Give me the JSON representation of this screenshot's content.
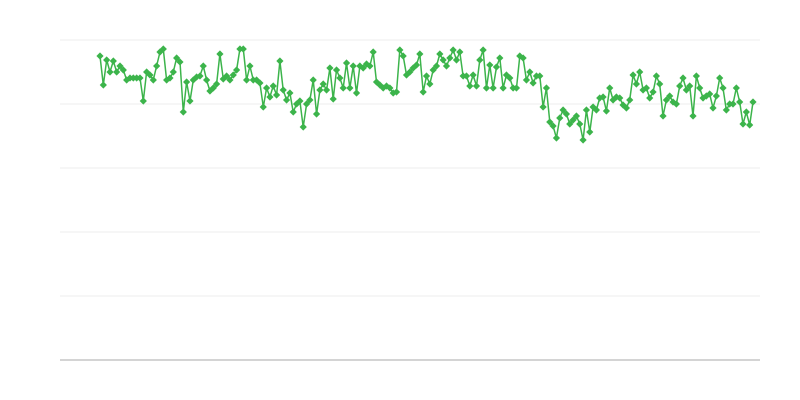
{
  "chart_data": {
    "type": "line",
    "title": "",
    "xlabel": "",
    "ylabel": "",
    "ylim": [
      0,
      320
    ],
    "grid": true,
    "grid_step": 64,
    "marker": "diamond",
    "colors": {
      "series": "#3cb44b",
      "grid": "#eeeeee",
      "axis": "#aaaaaa"
    },
    "series": [
      {
        "values": [
          304,
          275,
          300,
          288,
          299,
          288,
          294,
          290,
          280,
          282,
          282,
          282,
          282,
          259,
          288,
          285,
          280,
          294,
          308,
          311,
          280,
          282,
          288,
          302,
          298,
          248,
          278,
          259,
          280,
          283,
          284,
          294,
          280,
          269,
          272,
          276,
          306,
          281,
          284,
          280,
          285,
          290,
          311,
          311,
          280,
          294,
          280,
          280,
          277,
          253,
          272,
          263,
          274,
          265,
          299,
          270,
          260,
          267,
          248,
          256,
          259,
          233,
          256,
          260,
          280,
          246,
          270,
          276,
          270,
          292,
          261,
          290,
          282,
          272,
          297,
          272,
          294,
          267,
          294,
          292,
          296,
          294,
          308,
          278,
          275,
          272,
          274,
          272,
          267,
          268,
          310,
          304,
          285,
          288,
          292,
          295,
          306,
          268,
          284,
          276,
          290,
          294,
          306,
          300,
          294,
          302,
          310,
          300,
          308,
          284,
          284,
          274,
          285,
          274,
          300,
          310,
          272,
          295,
          272,
          293,
          302,
          272,
          285,
          282,
          272,
          272,
          304,
          302,
          280,
          288,
          277,
          284,
          284,
          253,
          272,
          238,
          234,
          222,
          242,
          250,
          246,
          236,
          240,
          244,
          236,
          220,
          250,
          228,
          253,
          250,
          262,
          263,
          249,
          272,
          260,
          263,
          262,
          255,
          252,
          260,
          285,
          276,
          288,
          270,
          272,
          262,
          268,
          284,
          276,
          244,
          260,
          264,
          258,
          256,
          274,
          282,
          270,
          274,
          244,
          284,
          272,
          262,
          264,
          266,
          252,
          264,
          282,
          272,
          250,
          256,
          256,
          272,
          258,
          236,
          248,
          235,
          258
        ]
      }
    ]
  }
}
